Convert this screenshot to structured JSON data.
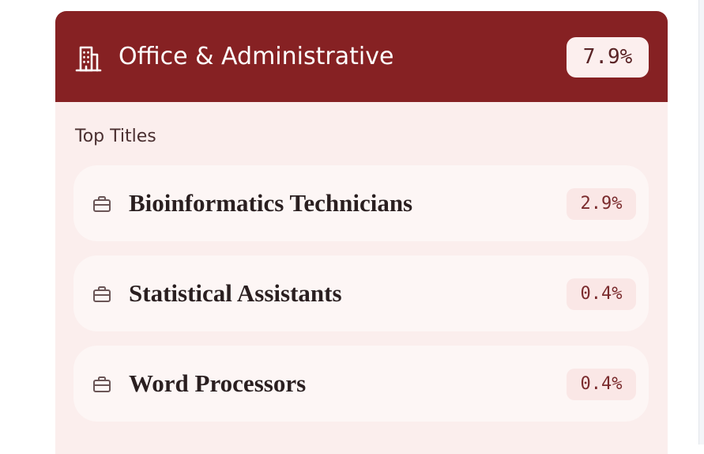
{
  "category": {
    "icon": "building-icon",
    "title": "Office & Administrative",
    "percent": "7.9%"
  },
  "top_titles": {
    "label": "Top Titles",
    "items": [
      {
        "icon": "briefcase-icon",
        "name": "Bioinformatics Technicians",
        "percent": "2.9%"
      },
      {
        "icon": "briefcase-icon",
        "name": "Statistical Assistants",
        "percent": "0.4%"
      },
      {
        "icon": "briefcase-icon",
        "name": "Word Processors",
        "percent": "0.4%"
      }
    ]
  },
  "colors": {
    "header_background": "#862123",
    "card_background": "#fbeeed",
    "row_background": "#fdf6f5",
    "badge_text": "#7a2a2c"
  }
}
